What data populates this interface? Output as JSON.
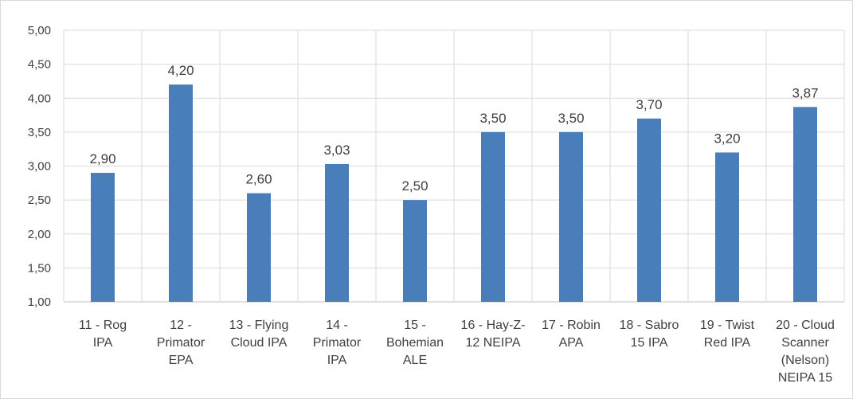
{
  "chart_data": {
    "type": "bar",
    "categories": [
      [
        "11 - Rog",
        "IPA"
      ],
      [
        "12 -",
        "Primator",
        "EPA"
      ],
      [
        "13 - Flying",
        "Cloud IPA"
      ],
      [
        "14 -",
        "Primator",
        "IPA"
      ],
      [
        "15 -",
        "Bohemian",
        "ALE"
      ],
      [
        "16 - Hay-Z-",
        "12 NEIPA"
      ],
      [
        "17 - Robin",
        "APA"
      ],
      [
        "18 - Sabro",
        "15 IPA"
      ],
      [
        "19 - Twist",
        "Red IPA"
      ],
      [
        "20 - Cloud",
        "Scanner",
        "(Nelson)",
        "NEIPA 15"
      ]
    ],
    "values": [
      2.9,
      4.2,
      2.6,
      3.03,
      2.5,
      3.5,
      3.5,
      3.7,
      3.2,
      3.87
    ],
    "data_labels": [
      "2,90",
      "4,20",
      "2,60",
      "3,03",
      "2,50",
      "3,50",
      "3,50",
      "3,70",
      "3,20",
      "3,87"
    ],
    "ylim": [
      1.0,
      5.0
    ],
    "yticks": [
      1.0,
      1.5,
      2.0,
      2.5,
      3.0,
      3.5,
      4.0,
      4.5,
      5.0
    ],
    "ytick_labels": [
      "1,00",
      "1,50",
      "2,00",
      "2,50",
      "3,00",
      "3,50",
      "4,00",
      "4,50",
      "5,00"
    ],
    "grid": true,
    "title": "",
    "xlabel": "",
    "ylabel": "",
    "colors": {
      "bar": "#4a7ebb",
      "grid": "#d9d9d9",
      "axis": "#bfbfbf",
      "text": "#404040"
    }
  }
}
